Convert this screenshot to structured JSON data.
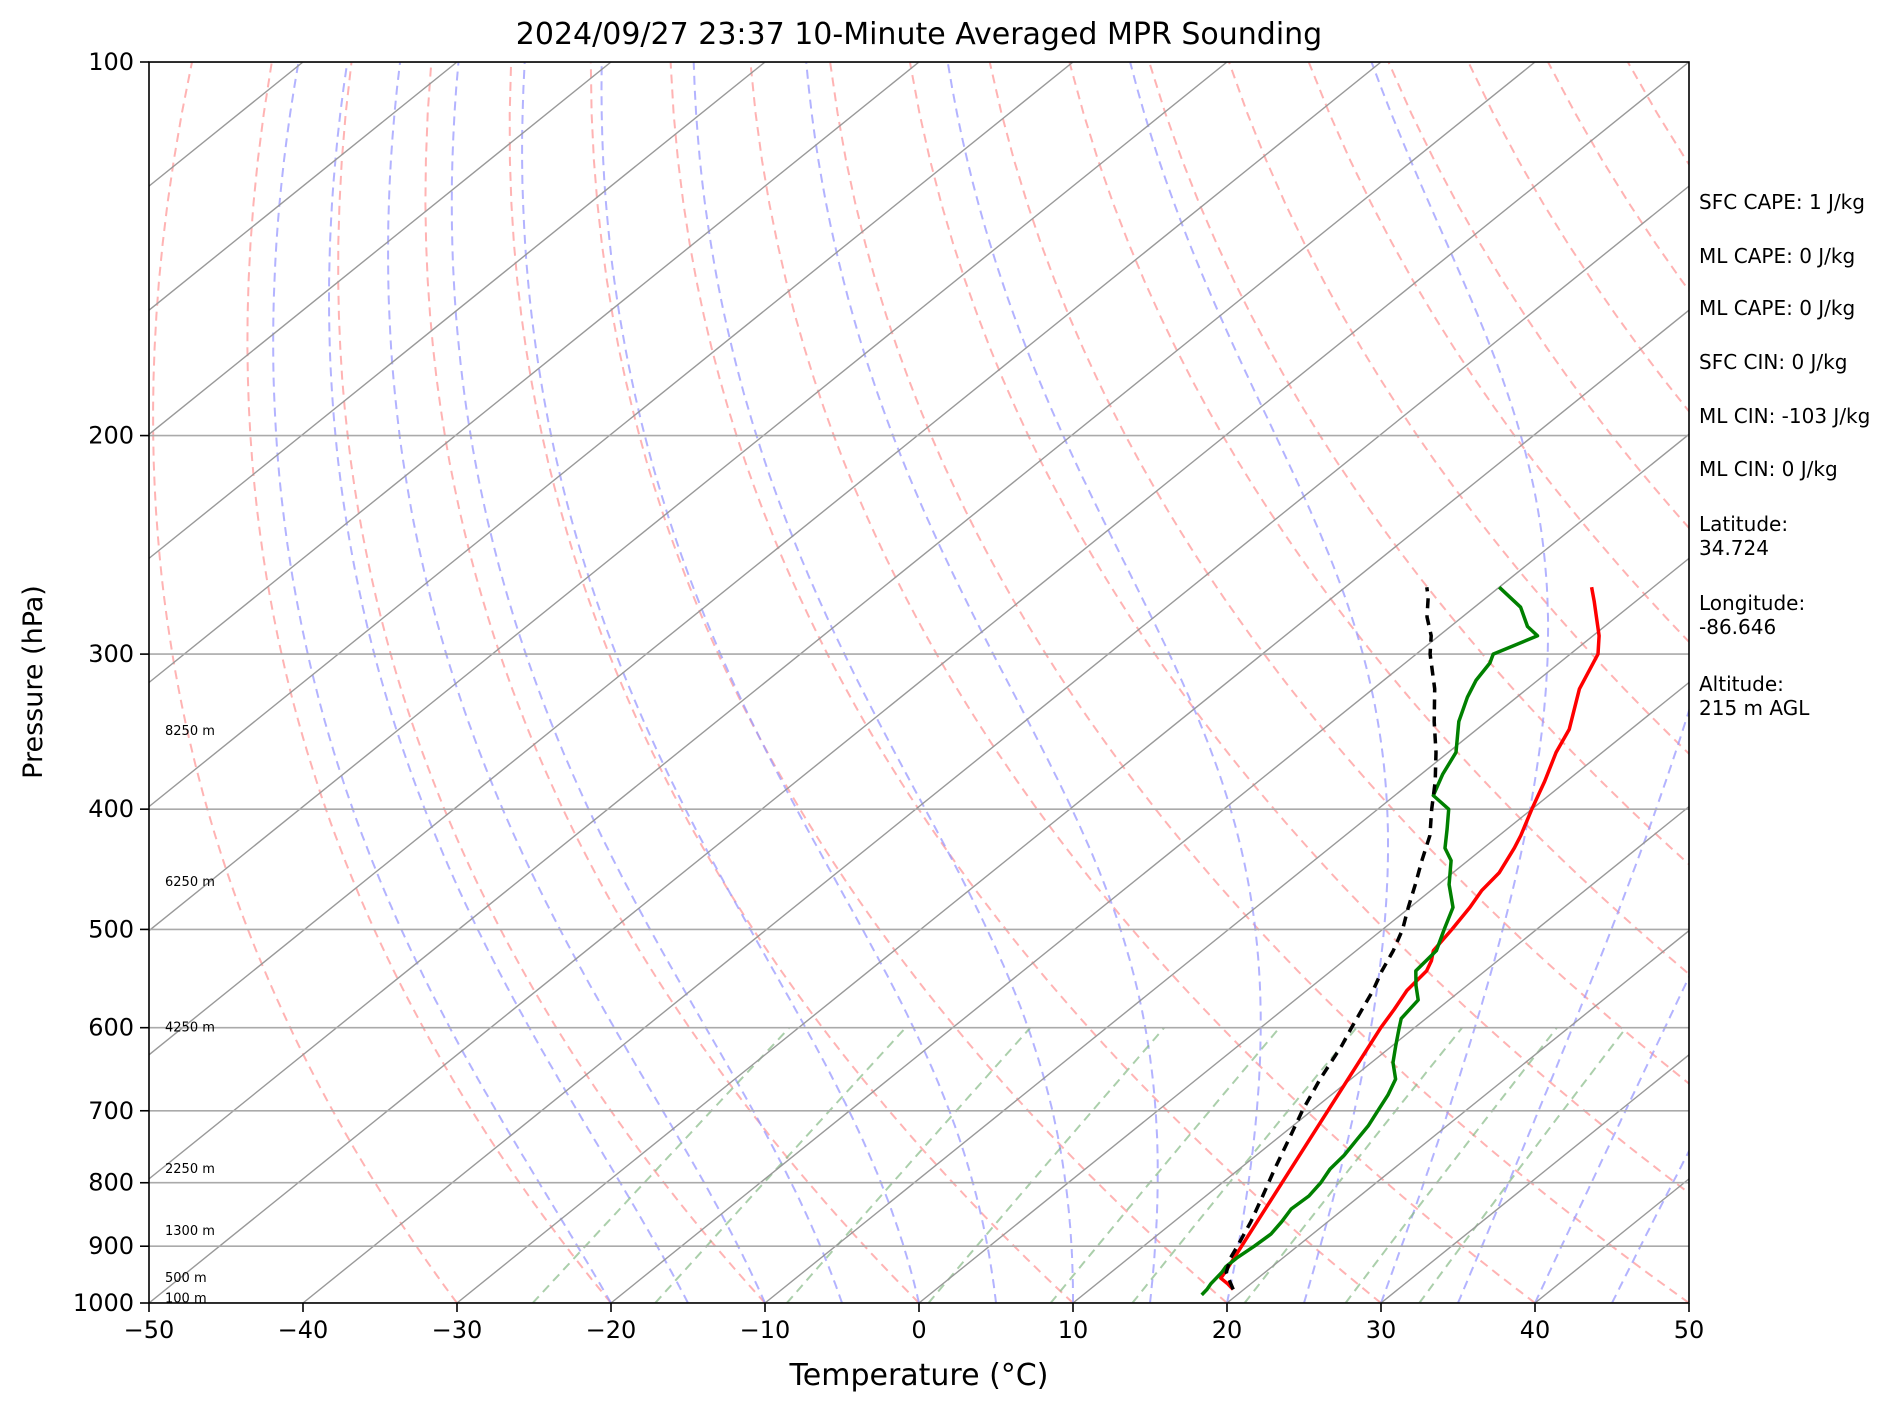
{
  "chart_data": {
    "type": "line",
    "title": "2024/09/27 23:37 10-Minute Averaged MPR Sounding",
    "xlabel": "Temperature (°C)",
    "ylabel": "Pressure (hPa)",
    "xlim": [
      -50,
      50
    ],
    "ylim": [
      1000,
      100
    ],
    "y_scale": "log",
    "x_ticks": [
      -50,
      -40,
      -30,
      -20,
      -10,
      0,
      10,
      20,
      30,
      40,
      50
    ],
    "x_tick_labels": [
      "−50",
      "−40",
      "−30",
      "−20",
      "−10",
      "0",
      "10",
      "20",
      "30",
      "40",
      "50"
    ],
    "y_ticks": [
      100,
      200,
      300,
      400,
      500,
      600,
      700,
      800,
      900,
      1000
    ],
    "y_tick_labels": [
      "100",
      "200",
      "300",
      "400",
      "500",
      "600",
      "700",
      "800",
      "900",
      "1000"
    ],
    "grid": true,
    "height_labels": [
      {
        "p": 346,
        "text": "8250 m"
      },
      {
        "p": 458,
        "text": "6250 m"
      },
      {
        "p": 600,
        "text": "4250 m"
      },
      {
        "p": 780,
        "text": "2250 m"
      },
      {
        "p": 875,
        "text": "1300 m"
      },
      {
        "p": 955,
        "text": "500 m"
      },
      {
        "p": 992,
        "text": "100 m"
      }
    ],
    "series": [
      {
        "role": "temperature",
        "color": "#ff0000",
        "points": [
          [
            975,
            19.3
          ],
          [
            965,
            18.5
          ],
          [
            955,
            17.6
          ],
          [
            945,
            17.4
          ],
          [
            600,
            7.8
          ],
          [
            580,
            7.2
          ],
          [
            560,
            6.5
          ],
          [
            540,
            6.2
          ],
          [
            530,
            5.7
          ],
          [
            520,
            5.0
          ],
          [
            500,
            4.5
          ],
          [
            480,
            3.9
          ],
          [
            465,
            3.3
          ],
          [
            450,
            3.0
          ],
          [
            430,
            2.0
          ],
          [
            420,
            1.4
          ],
          [
            400,
            0.0
          ],
          [
            380,
            -1.4
          ],
          [
            360,
            -3.0
          ],
          [
            345,
            -4.0
          ],
          [
            320,
            -6.6
          ],
          [
            300,
            -8.2
          ],
          [
            290,
            -9.6
          ],
          [
            280,
            -11.3
          ],
          [
            272,
            -12.7
          ],
          [
            265,
            -14.0
          ]
        ]
      },
      {
        "role": "dewpoint",
        "color": "#008000",
        "points": [
          [
            985,
            17.7
          ],
          [
            975,
            17.6
          ],
          [
            965,
            17.4
          ],
          [
            955,
            17.3
          ],
          [
            945,
            17.2
          ],
          [
            935,
            17.0
          ],
          [
            920,
            17.0
          ],
          [
            900,
            17.2
          ],
          [
            880,
            17.3
          ],
          [
            860,
            17.0
          ],
          [
            840,
            16.6
          ],
          [
            820,
            16.7
          ],
          [
            800,
            16.4
          ],
          [
            780,
            15.9
          ],
          [
            760,
            15.7
          ],
          [
            740,
            15.3
          ],
          [
            720,
            14.9
          ],
          [
            700,
            14.3
          ],
          [
            680,
            13.7
          ],
          [
            660,
            12.9
          ],
          [
            640,
            11.4
          ],
          [
            620,
            10.2
          ],
          [
            600,
            9.0
          ],
          [
            590,
            8.4
          ],
          [
            570,
            8.0
          ],
          [
            555,
            6.7
          ],
          [
            540,
            5.5
          ],
          [
            520,
            5.2
          ],
          [
            500,
            4.0
          ],
          [
            480,
            2.8
          ],
          [
            460,
            0.7
          ],
          [
            440,
            -1.1
          ],
          [
            430,
            -2.5
          ],
          [
            415,
            -3.9
          ],
          [
            400,
            -5.4
          ],
          [
            390,
            -7.5
          ],
          [
            375,
            -8.6
          ],
          [
            360,
            -9.5
          ],
          [
            340,
            -11.8
          ],
          [
            325,
            -13.2
          ],
          [
            315,
            -14.0
          ],
          [
            305,
            -14.5
          ],
          [
            300,
            -15.0
          ],
          [
            290,
            -13.6
          ],
          [
            285,
            -15.0
          ],
          [
            275,
            -17.0
          ],
          [
            265,
            -20.0
          ]
        ]
      },
      {
        "role": "parcel_profile",
        "color": "#000000",
        "dashed": true,
        "points": [
          [
            975,
            19.3
          ],
          [
            960,
            18.4
          ],
          [
            945,
            17.5
          ],
          [
            920,
            16.6
          ],
          [
            900,
            16.1
          ],
          [
            860,
            15.0
          ],
          [
            820,
            13.7
          ],
          [
            780,
            12.3
          ],
          [
            740,
            10.9
          ],
          [
            700,
            9.4
          ],
          [
            660,
            8.0
          ],
          [
            620,
            6.7
          ],
          [
            600,
            5.9
          ],
          [
            560,
            4.3
          ],
          [
            540,
            3.3
          ],
          [
            520,
            2.4
          ],
          [
            500,
            1.3
          ],
          [
            480,
            -0.1
          ],
          [
            460,
            -1.5
          ],
          [
            440,
            -3.0
          ],
          [
            420,
            -4.5
          ],
          [
            400,
            -6.5
          ],
          [
            380,
            -8.5
          ],
          [
            360,
            -10.8
          ],
          [
            340,
            -13.4
          ],
          [
            320,
            -16.0
          ],
          [
            300,
            -19.1
          ],
          [
            290,
            -20.5
          ],
          [
            280,
            -22.3
          ],
          [
            270,
            -23.8
          ],
          [
            265,
            -24.7
          ]
        ]
      }
    ]
  },
  "sidebar": {
    "sfc_cape": "SFC CAPE: 1 J/kg",
    "ml_cape_1": "ML CAPE: 0 J/kg",
    "ml_cape_2": "ML CAPE: 0 J/kg",
    "sfc_cin": "SFC CIN: 0 J/kg",
    "ml_cin_1": "ML CIN: -103 J/kg",
    "ml_cin_2": "ML CIN: 0 J/kg",
    "latitude": "Latitude:\n34.724",
    "longitude": "Longitude:\n-86.646",
    "altitude": "Altitude:\n215 m AGL"
  },
  "colors": {
    "temperature": "#ff0000",
    "dewpoint": "#008000",
    "parcel": "#000000",
    "dry_adiabat": "#ff9999",
    "moist_adiabat": "#9999ff",
    "mixing_ratio": "#88bb88",
    "isotherm": "#999999"
  }
}
